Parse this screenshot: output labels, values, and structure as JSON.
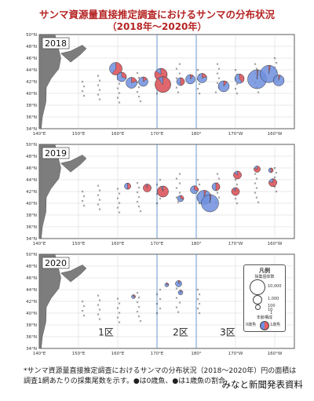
{
  "title": {
    "line1": "サンマ資源量直接推定調査におけるサンマの分布状況",
    "line2": "（2018年〜2020年）"
  },
  "panels": [
    {
      "year": "2018"
    },
    {
      "year": "2019"
    },
    {
      "year": "2020"
    }
  ],
  "axes": {
    "lat_labels": [
      "50°N",
      "48°N",
      "46°N",
      "44°N",
      "42°N",
      "40°N",
      "38°N",
      "36°N",
      "34°N"
    ],
    "lon_labels": [
      "140°E",
      "150°E",
      "160°E",
      "170°E",
      "180°",
      "170°W",
      "160°W"
    ]
  },
  "zones": [
    "1区",
    "2区",
    "3区"
  ],
  "legend": {
    "title": "凡例",
    "header": "採集個体数",
    "values": [
      "10,000",
      "1,000",
      "100",
      "10",
      "1"
    ],
    "ratio_label": "年齢構成",
    "age0": "0歳魚",
    "age1": "1歳魚"
  },
  "footnote": {
    "line1": "*サンマ資源量直接推定調査におけるサンマの分布状況（2018〜2020年）円の面積は",
    "line2": "調査1網あたりの採集尾数を示す。●は0歳魚、●は1歳魚の割合"
  },
  "source": "みなと新聞発表資料",
  "colors": {
    "title": "#b52424",
    "age0": "#6f8fde",
    "age1": "#e95f5f",
    "land": "#7d7d7d",
    "zone_line": "#5b8fc9",
    "panel_bg": "#f4f4f4"
  },
  "map_extent": {
    "lon_min": 140,
    "lon_max": 205,
    "lat_min": 34,
    "lat_max": 50
  },
  "catches": {
    "2018": [
      {
        "lon": 159.5,
        "lat": 44.2,
        "r": 8,
        "p1": 0.6
      },
      {
        "lon": 161.0,
        "lat": 42.8,
        "r": 6,
        "p1": 0.3
      },
      {
        "lon": 163.5,
        "lat": 41.8,
        "r": 7,
        "p1": 0.2
      },
      {
        "lon": 166.5,
        "lat": 42.0,
        "r": 6,
        "p1": 0.15
      },
      {
        "lon": 171.0,
        "lat": 43.2,
        "r": 8,
        "p1": 0.85
      },
      {
        "lon": 171.5,
        "lat": 41.5,
        "r": 10,
        "p1": 0.9
      },
      {
        "lon": 176.0,
        "lat": 42.0,
        "r": 5,
        "p1": 0.5
      },
      {
        "lon": 178.5,
        "lat": 42.4,
        "r": 6,
        "p1": 0.1
      },
      {
        "lon": 181.5,
        "lat": 42.6,
        "r": 6,
        "p1": 0.2
      },
      {
        "lon": 187.0,
        "lat": 41.2,
        "r": 7,
        "p1": 0.1
      },
      {
        "lon": 191.0,
        "lat": 42.5,
        "r": 6,
        "p1": 0.4
      },
      {
        "lon": 195.5,
        "lat": 42.4,
        "r": 12,
        "p1": 0.02
      },
      {
        "lon": 198.5,
        "lat": 43.3,
        "r": 11,
        "p1": 0.03
      },
      {
        "lon": 201.0,
        "lat": 42.2,
        "r": 7,
        "p1": 0.05
      }
    ],
    "2019": [
      {
        "lon": 162.5,
        "lat": 42.9,
        "r": 4,
        "p1": 0.5
      },
      {
        "lon": 167.5,
        "lat": 42.6,
        "r": 5,
        "p1": 0.95
      },
      {
        "lon": 171.5,
        "lat": 42.0,
        "r": 7,
        "p1": 0.95
      },
      {
        "lon": 176.0,
        "lat": 40.8,
        "r": 4,
        "p1": 0.3
      },
      {
        "lon": 179.5,
        "lat": 42.3,
        "r": 5,
        "p1": 0.3
      },
      {
        "lon": 182.0,
        "lat": 41.0,
        "r": 9,
        "p1": 0.05
      },
      {
        "lon": 183.5,
        "lat": 40.0,
        "r": 11,
        "p1": 0.02
      },
      {
        "lon": 185.0,
        "lat": 42.8,
        "r": 5,
        "p1": 0.5
      },
      {
        "lon": 190.0,
        "lat": 42.0,
        "r": 5,
        "p1": 0.9
      },
      {
        "lon": 190.5,
        "lat": 44.8,
        "r": 5,
        "p1": 0.85
      },
      {
        "lon": 195.5,
        "lat": 45.8,
        "r": 4,
        "p1": 0.8
      },
      {
        "lon": 199.5,
        "lat": 43.5,
        "r": 5,
        "p1": 0.8
      },
      {
        "lon": 199.0,
        "lat": 45.6,
        "r": 3,
        "p1": 0.5
      }
    ],
    "2020": [
      {
        "lon": 164.0,
        "lat": 42.8,
        "r": 2.5,
        "p1": 0.3
      },
      {
        "lon": 172.5,
        "lat": 44.8,
        "r": 2.5,
        "p1": 0.2
      },
      {
        "lon": 175.5,
        "lat": 45.0,
        "r": 4,
        "p1": 0.1
      },
      {
        "lon": 176.0,
        "lat": 43.5,
        "r": 3,
        "p1": 0.1
      }
    ]
  }
}
